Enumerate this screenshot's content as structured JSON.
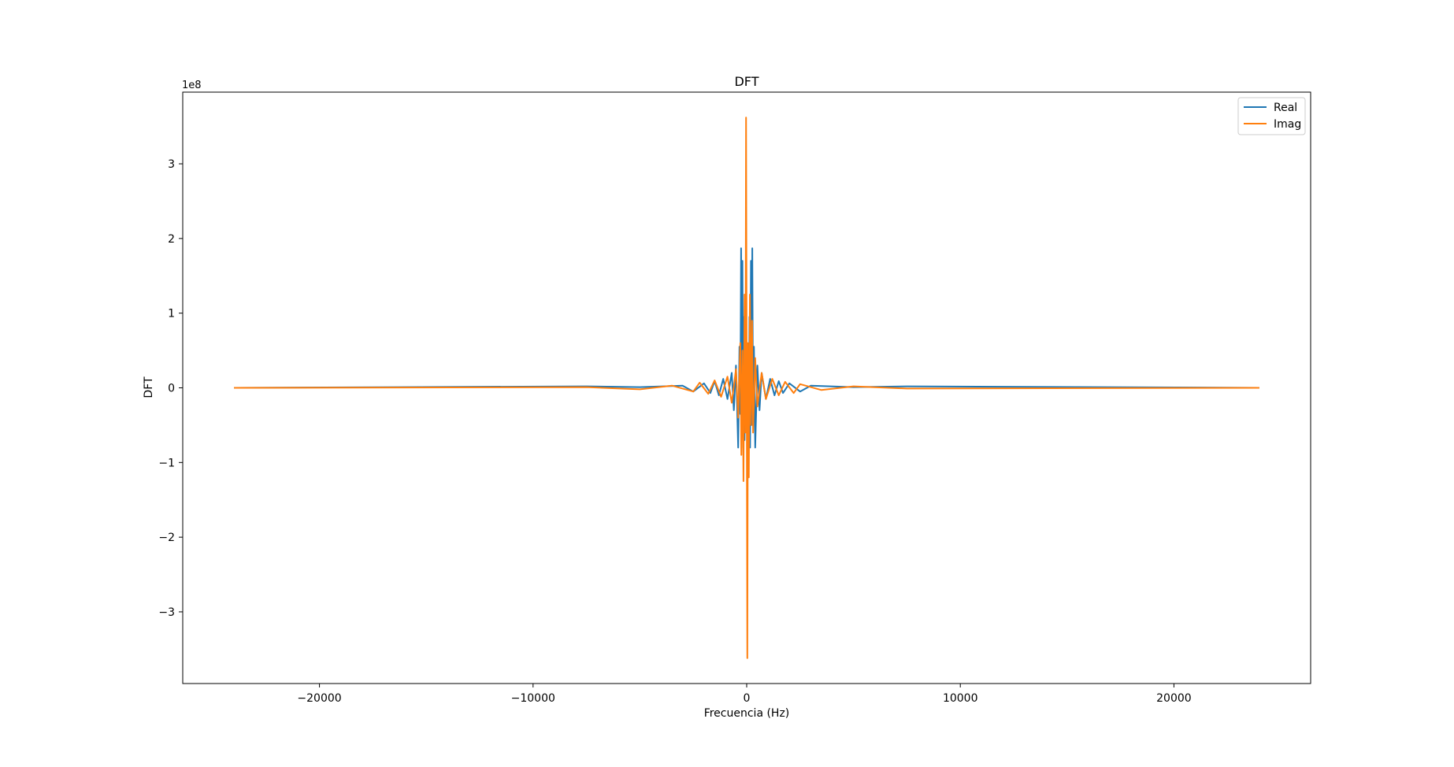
{
  "chart_data": {
    "type": "line",
    "title": "DFT",
    "xlabel": "Frecuencia (Hz)",
    "ylabel": "DFT",
    "y_offset_label": "1e8",
    "xlim": [
      -26400,
      26400
    ],
    "ylim": [
      -3.96,
      3.96
    ],
    "x_scale": "linear",
    "y_scale": "linear",
    "y_unit_multiplier": 100000000,
    "grid": false,
    "legend_position": "upper right",
    "x_ticks": [
      -20000,
      -10000,
      0,
      10000,
      20000
    ],
    "x_tick_labels": [
      "−20000",
      "−10000",
      "0",
      "10000",
      "20000"
    ],
    "y_ticks": [
      -3,
      -2,
      -1,
      0,
      1,
      2,
      3
    ],
    "y_tick_labels": [
      "−3",
      "−2",
      "−1",
      "0",
      "1",
      "2",
      "3"
    ],
    "colors": {
      "Real": "#1f77b4",
      "Imag": "#ff7f0e"
    },
    "series": [
      {
        "name": "Real",
        "x": [
          -24000,
          -7500,
          -5000,
          -3000,
          -2500,
          -2000,
          -1700,
          -1500,
          -1300,
          -1100,
          -900,
          -700,
          -600,
          -500,
          -400,
          -340,
          -300,
          -260,
          -220,
          -200,
          -160,
          -130,
          -100,
          -60,
          -30,
          0,
          30,
          60,
          100,
          130,
          160,
          200,
          220,
          260,
          300,
          340,
          400,
          500,
          600,
          700,
          900,
          1100,
          1300,
          1500,
          1700,
          2000,
          2500,
          3000,
          5000,
          7500,
          24000
        ],
        "y": [
          0,
          0.02,
          0.01,
          0.03,
          -0.05,
          0.06,
          -0.07,
          0.09,
          -0.1,
          0.12,
          -0.15,
          0.2,
          -0.3,
          0.3,
          -0.8,
          0.55,
          -0.35,
          1.87,
          -0.5,
          1.7,
          -0.8,
          0.95,
          -0.7,
          0.55,
          -0.35,
          0.3,
          -0.25,
          0.55,
          -0.55,
          0.95,
          -0.8,
          1.7,
          -0.5,
          1.87,
          -0.35,
          0.55,
          -0.8,
          0.3,
          -0.3,
          0.2,
          -0.15,
          0.12,
          -0.1,
          0.09,
          -0.07,
          0.06,
          -0.05,
          0.03,
          0.01,
          0.02,
          0
        ]
      },
      {
        "name": "Imag",
        "x": [
          -24000,
          -7500,
          -5000,
          -3500,
          -2500,
          -2200,
          -1800,
          -1500,
          -1200,
          -900,
          -700,
          -500,
          -400,
          -300,
          -250,
          -200,
          -150,
          -100,
          -60,
          -30,
          0,
          30,
          60,
          100,
          150,
          200,
          250,
          300,
          400,
          500,
          700,
          900,
          1200,
          1500,
          1800,
          2200,
          2500,
          3500,
          5000,
          7500,
          24000
        ],
        "y": [
          0,
          0.01,
          -0.02,
          0.03,
          -0.05,
          0.07,
          -0.08,
          0.1,
          -0.12,
          0.15,
          -0.2,
          0.25,
          -0.4,
          0.6,
          -0.9,
          0.5,
          -1.25,
          1.25,
          -0.6,
          3.62,
          0.2,
          -3.62,
          0.6,
          -1.2,
          1.25,
          -0.5,
          0.9,
          -0.6,
          0.4,
          -0.25,
          0.2,
          -0.15,
          0.12,
          -0.1,
          0.08,
          -0.07,
          0.05,
          -0.03,
          0.02,
          -0.01,
          0
        ]
      }
    ]
  }
}
